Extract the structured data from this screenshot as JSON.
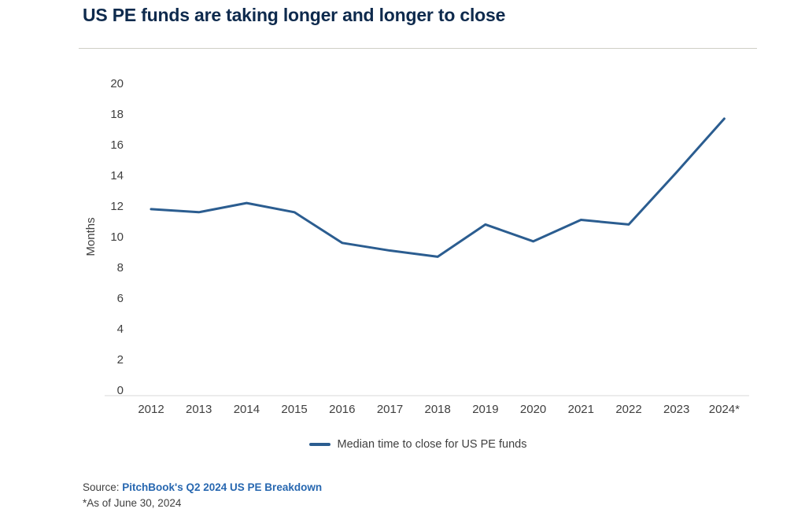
{
  "title": "US PE funds are taking longer and longer to close",
  "chart_data": {
    "type": "line",
    "title": "US PE funds are taking longer and longer to close",
    "categories": [
      "2012",
      "2013",
      "2014",
      "2015",
      "2016",
      "2017",
      "2018",
      "2019",
      "2020",
      "2021",
      "2022",
      "2023",
      "2024*"
    ],
    "series": [
      {
        "name": "Median time to close for US PE funds",
        "values": [
          11.8,
          11.6,
          12.2,
          11.6,
          9.6,
          9.1,
          8.7,
          10.8,
          9.7,
          11.1,
          10.8,
          14.2,
          17.7
        ]
      }
    ],
    "xlabel": "",
    "ylabel": "Months",
    "ylim": [
      0,
      20
    ],
    "ytick_step": 2,
    "grid": false,
    "legend_position": "bottom-center"
  },
  "legend": {
    "label": "Median time to close for US PE funds"
  },
  "source": {
    "prefix": "Source: ",
    "link_text": "PitchBook's Q2 2024 US PE Breakdown",
    "footnote": "*As of June 30, 2024"
  },
  "colors": {
    "title": "#0e2a4d",
    "line": "#2b5d90",
    "link": "#2767b0",
    "axis_line": "#d9d9d9",
    "divider": "#cfcec6",
    "tick_text": "#404040"
  }
}
